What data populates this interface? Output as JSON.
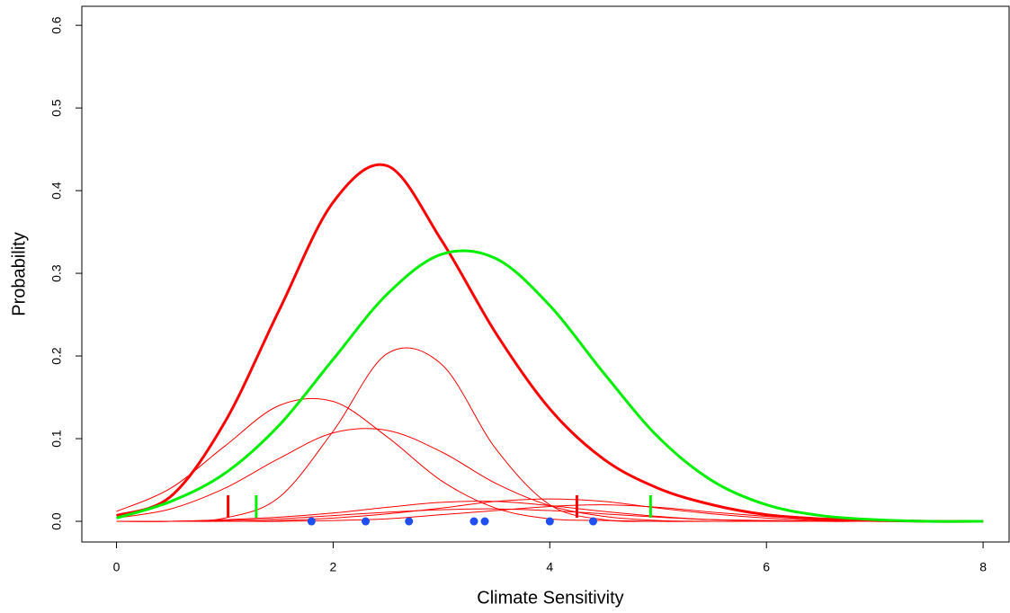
{
  "chart_data": {
    "type": "line",
    "x_label": "Climate Sensitivity",
    "y_label": "Probability",
    "x": [
      0,
      0.5,
      1,
      1.5,
      2,
      2.5,
      3,
      3.5,
      4,
      4.5,
      5,
      5.5,
      6,
      6.5,
      7,
      7.5,
      8
    ],
    "series": [
      {
        "color": "#ff0000",
        "line_width": 1,
        "values": [
          0.012,
          0.04,
          0.091,
          0.14,
          0.145,
          0.102,
          0.049,
          0.016,
          0.003,
          0.001,
          0,
          0,
          0,
          0,
          0,
          0,
          0
        ]
      },
      {
        "color": "#ff0000",
        "line_width": 1,
        "values": [
          0.004,
          0.015,
          0.04,
          0.076,
          0.107,
          0.11,
          0.084,
          0.046,
          0.019,
          0.006,
          0.001,
          0,
          0,
          0,
          0,
          0,
          0
        ]
      },
      {
        "color": "#ff0000",
        "line_width": 1,
        "values": [
          0,
          0,
          0.004,
          0.029,
          0.109,
          0.203,
          0.19,
          0.088,
          0.02,
          0.002,
          0,
          0,
          0,
          0,
          0,
          0,
          0
        ]
      },
      {
        "color": "#ff0000",
        "line_width": 1,
        "values": [
          0,
          0,
          0.002,
          0.005,
          0.01,
          0.017,
          0.023,
          0.024,
          0.019,
          0.012,
          0.006,
          0.002,
          0.001,
          0,
          0,
          0,
          0
        ]
      },
      {
        "color": "#ff0000",
        "line_width": 1,
        "values": [
          0,
          0,
          0.001,
          0.003,
          0.007,
          0.011,
          0.014,
          0.015,
          0.013,
          0.009,
          0.005,
          0.002,
          0.001,
          0,
          0,
          0,
          0
        ]
      },
      {
        "color": "#ff0000",
        "line_width": 1,
        "values": [
          0,
          0,
          0,
          0.001,
          0.004,
          0.009,
          0.016,
          0.024,
          0.027,
          0.024,
          0.016,
          0.009,
          0.004,
          0.001,
          0,
          0,
          0
        ]
      },
      {
        "color": "#ff0000",
        "line_width": 1,
        "values": [
          0,
          0,
          0,
          0,
          0.001,
          0.003,
          0.008,
          0.013,
          0.018,
          0.02,
          0.017,
          0.011,
          0.006,
          0.002,
          0.001,
          0,
          0
        ]
      },
      {
        "color": "#ff0000",
        "line_width": 3,
        "values": [
          0.007,
          0.03,
          0.12,
          0.255,
          0.386,
          0.43,
          0.34,
          0.228,
          0.136,
          0.075,
          0.04,
          0.02,
          0.008,
          0.003,
          0.001,
          0,
          0
        ]
      },
      {
        "color": "#00ee00",
        "line_width": 3,
        "values": [
          0.004,
          0.024,
          0.058,
          0.116,
          0.196,
          0.275,
          0.323,
          0.318,
          0.261,
          0.179,
          0.102,
          0.049,
          0.02,
          0.007,
          0.002,
          0,
          0
        ]
      }
    ],
    "intervals": [
      {
        "color": "#ff0000",
        "values": [
          1.03,
          4.25
        ]
      },
      {
        "color": "#00ee00",
        "values": [
          1.29,
          4.93
        ]
      }
    ],
    "points": {
      "color": "#1f4ff0",
      "x": [
        1.8,
        2.3,
        2.7,
        3.3,
        3.4,
        4.0,
        4.4
      ],
      "values": [
        0,
        0,
        0,
        0,
        0,
        0,
        0
      ]
    },
    "xlim": [
      -0.32,
      8.24
    ],
    "ylim": [
      -0.025,
      0.623
    ],
    "xticks": [
      0,
      2,
      4,
      6,
      8
    ],
    "yticks": [
      {
        "value": 0,
        "label": "0.0"
      },
      0.1,
      0.2,
      0.3,
      0.4,
      0.5,
      0.6
    ]
  }
}
